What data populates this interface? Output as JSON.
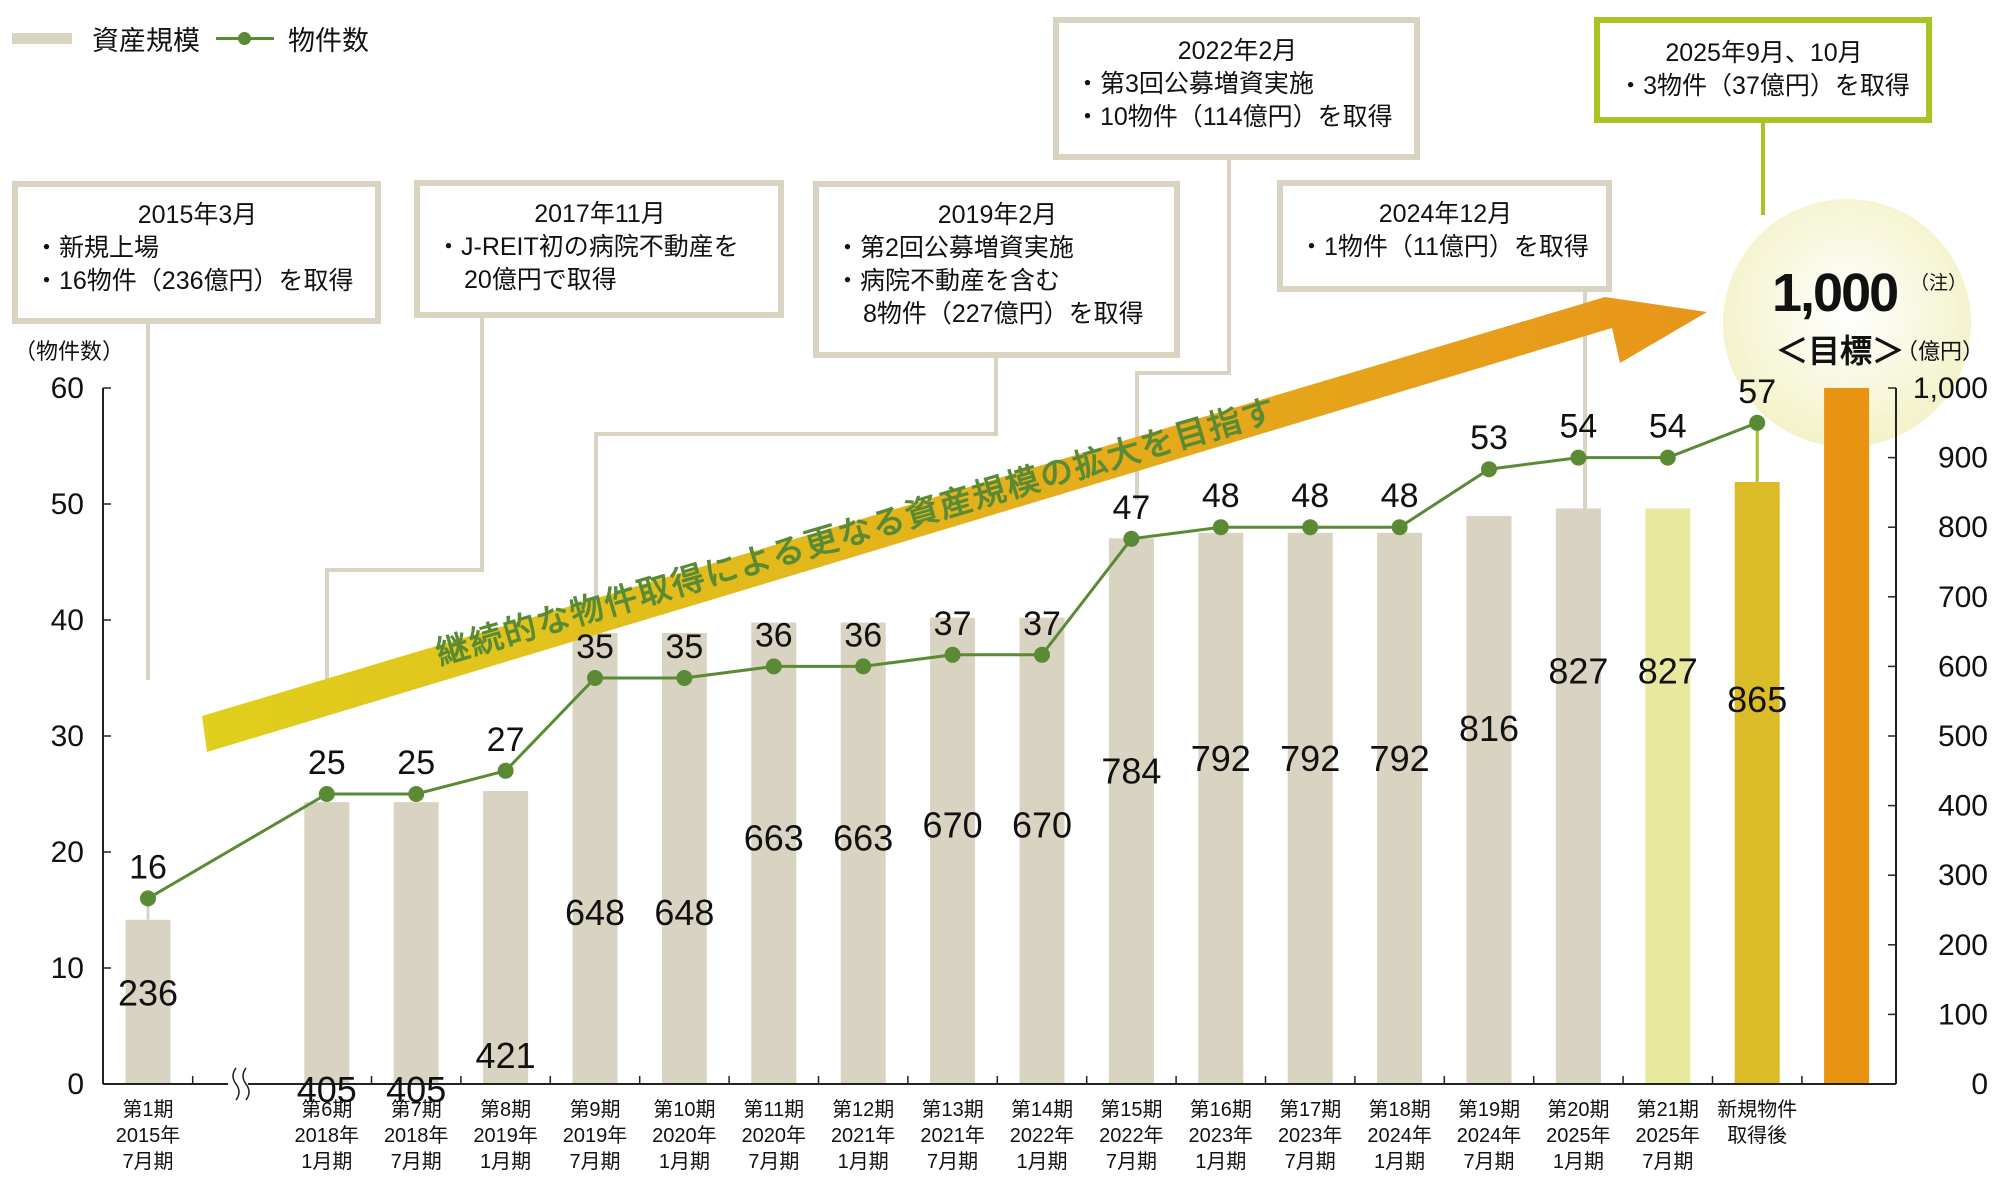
{
  "legend": {
    "bar_label": "資産規模",
    "line_label": "物件数"
  },
  "axis_titles": {
    "left": "（物件数）",
    "right": "（億円）"
  },
  "annotations": [
    {
      "title": "2015年3月",
      "lines": [
        "・新規上場",
        "・16物件（236億円）を取得"
      ]
    },
    {
      "title": "2017年11月",
      "lines": [
        "・J-REIT初の病院不動産を",
        "20億円で取得"
      ]
    },
    {
      "title": "2019年2月",
      "lines": [
        "・第2回公募増資実施",
        "・病院不動産を含む",
        "8物件（227億円）を取得"
      ]
    },
    {
      "title": "2022年2月",
      "lines": [
        "・第3回公募増資実施",
        "・10物件（114億円）を取得"
      ]
    },
    {
      "title": "2024年12月",
      "lines": [
        "・1物件（11億円）を取得"
      ]
    },
    {
      "title": "2025年9月、10月",
      "lines": [
        "・3物件（37億円）を取得"
      ]
    }
  ],
  "arrow_text": "継続的な物件取得による更なる資産規模の拡大を目指す",
  "target": {
    "value": "1,000",
    "note": "（注）",
    "label": "＜目標＞"
  },
  "colors": {
    "bar": "#d9d4c2",
    "bar_current": "#e8e89e",
    "bar_after": "#dbbb28",
    "bar_target": "#e89312",
    "line": "#5a8a34",
    "green_box": "#a6c523",
    "arrow_start": "#e0cf1c",
    "arrow_end": "#e8951a",
    "arrow_text": "#5a8a34",
    "target_circle": "#f3f2c8"
  },
  "chart_data": {
    "type": "bar+line",
    "categories": [
      [
        "第1期",
        "2015年",
        "7月期"
      ],
      [
        "第6期",
        "2018年",
        "1月期"
      ],
      [
        "第7期",
        "2018年",
        "7月期"
      ],
      [
        "第8期",
        "2019年",
        "1月期"
      ],
      [
        "第9期",
        "2019年",
        "7月期"
      ],
      [
        "第10期",
        "2020年",
        "1月期"
      ],
      [
        "第11期",
        "2020年",
        "7月期"
      ],
      [
        "第12期",
        "2021年",
        "1月期"
      ],
      [
        "第13期",
        "2021年",
        "7月期"
      ],
      [
        "第14期",
        "2022年",
        "1月期"
      ],
      [
        "第15期",
        "2022年",
        "7月期"
      ],
      [
        "第16期",
        "2023年",
        "1月期"
      ],
      [
        "第17期",
        "2023年",
        "7月期"
      ],
      [
        "第18期",
        "2024年",
        "1月期"
      ],
      [
        "第19期",
        "2024年",
        "7月期"
      ],
      [
        "第20期",
        "2025年",
        "1月期"
      ],
      [
        "第21期",
        "2025年",
        "7月期"
      ],
      [
        "新規物件",
        "取得後"
      ],
      []
    ],
    "series": [
      {
        "name": "資産規模",
        "type": "bar",
        "axis": "right",
        "values": [
          236,
          405,
          405,
          421,
          648,
          648,
          663,
          663,
          670,
          670,
          784,
          792,
          792,
          792,
          816,
          827,
          827,
          865,
          1000
        ],
        "labels": [
          "236",
          "405",
          "405",
          "421",
          "648",
          "648",
          "663",
          "663",
          "670",
          "670",
          "784",
          "792",
          "792",
          "792",
          "816",
          "827",
          "827",
          "865",
          ""
        ]
      },
      {
        "name": "物件数",
        "type": "line",
        "axis": "left",
        "values": [
          16,
          25,
          25,
          27,
          35,
          35,
          36,
          36,
          37,
          37,
          47,
          48,
          48,
          48,
          53,
          54,
          54,
          57,
          null
        ]
      }
    ],
    "axis_break_after": "第1期",
    "y_left": {
      "title": "（物件数）",
      "range": [
        0,
        60
      ],
      "ticks": [
        "0",
        "10",
        "20",
        "30",
        "40",
        "50",
        "60"
      ]
    },
    "y_right": {
      "title": "（億円）",
      "range": [
        0,
        1000
      ],
      "ticks": [
        "0",
        "100",
        "200",
        "300",
        "400",
        "500",
        "600",
        "700",
        "800",
        "900",
        "1,000"
      ]
    }
  }
}
